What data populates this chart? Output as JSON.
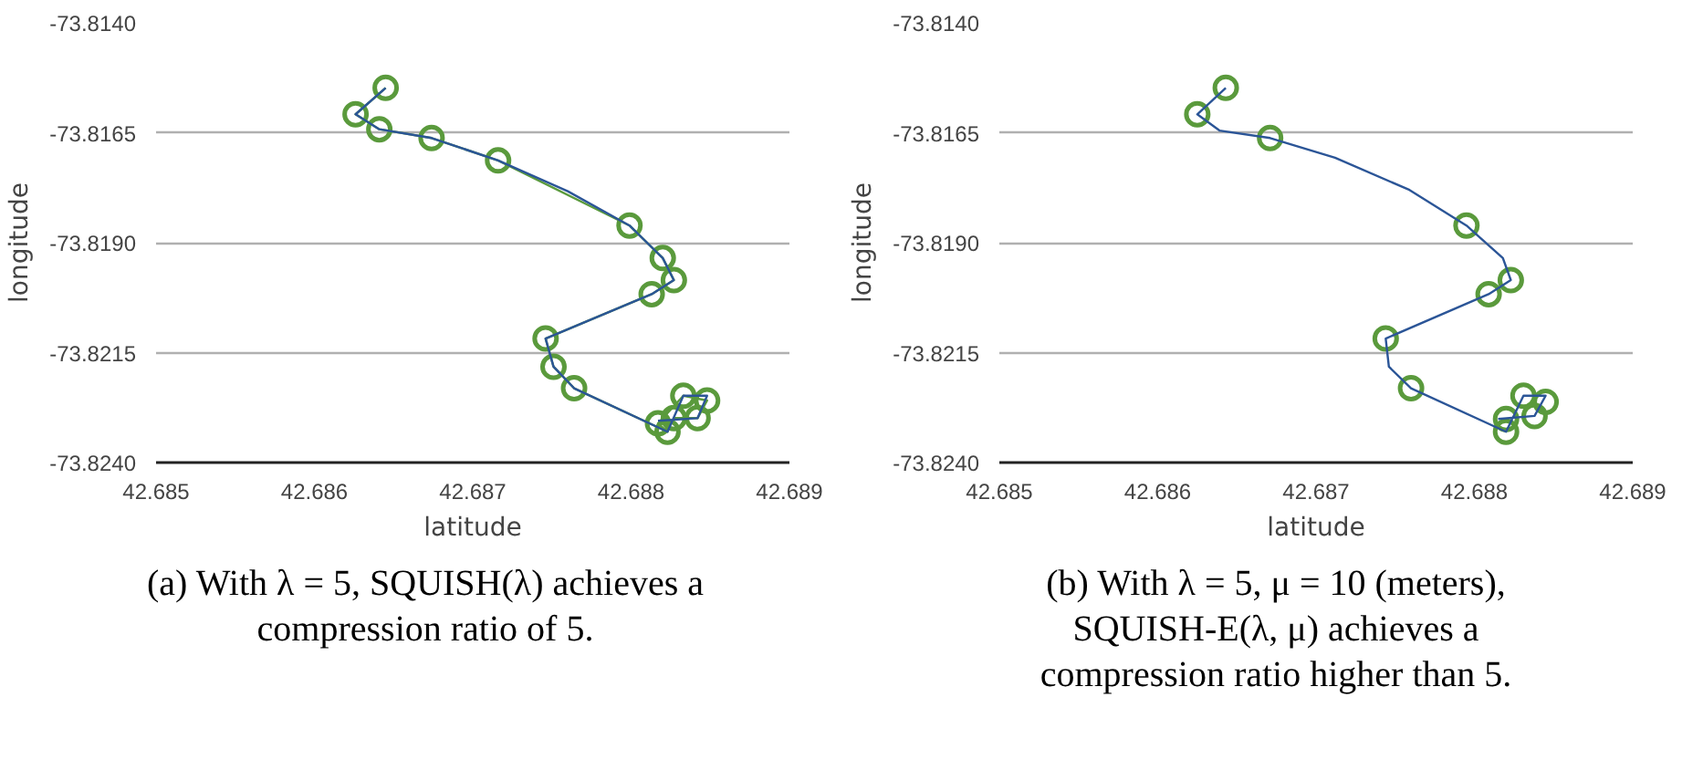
{
  "chart_data": [
    {
      "type": "line",
      "xlabel": "latitude",
      "ylabel": "longitude",
      "xlim": [
        42.685,
        42.689
      ],
      "ylim": [
        -73.824,
        -73.814
      ],
      "xticks": [
        {
          "value": 42.685,
          "label": "42.685"
        },
        {
          "value": 42.686,
          "label": "42.686"
        },
        {
          "value": 42.687,
          "label": "42.687"
        },
        {
          "value": 42.688,
          "label": "42.688"
        },
        {
          "value": 42.689,
          "label": "42.689"
        }
      ],
      "yticks": [
        {
          "value": -73.814,
          "label": "-73.8140"
        },
        {
          "value": -73.8165,
          "label": "-73.8165"
        },
        {
          "value": -73.819,
          "label": "-73.8190"
        },
        {
          "value": -73.8215,
          "label": "-73.8215"
        },
        {
          "value": -73.824,
          "label": "-73.8240"
        }
      ],
      "grid": "y",
      "series": [
        {
          "marker": "circle",
          "color": "#5a9a3c",
          "x": [
            42.68645,
            42.68626,
            42.68641,
            42.68674,
            42.68716,
            42.68799,
            42.6882,
            42.68827,
            42.68813,
            42.68746,
            42.68751,
            42.68764,
            42.68823,
            42.68817,
            42.68833,
            42.68848,
            42.68842,
            42.68827
          ],
          "values": [
            -73.81548,
            -73.81608,
            -73.81642,
            -73.81662,
            -73.81713,
            -73.81861,
            -73.81935,
            -73.81985,
            -73.82017,
            -73.82118,
            -73.82182,
            -73.82231,
            -73.8233,
            -73.82311,
            -73.82248,
            -73.82259,
            -73.82299,
            -73.82299
          ]
        },
        {
          "marker": "none",
          "color": "#2b5597",
          "x": [
            42.68645,
            42.68626,
            42.68641,
            42.68674,
            42.68716,
            42.6876,
            42.68799,
            42.6882,
            42.68827,
            42.68813,
            42.68746,
            42.68751,
            42.68764,
            42.68823,
            42.68833,
            42.68848,
            42.68842,
            42.68817
          ],
          "values": [
            -73.81548,
            -73.81608,
            -73.81642,
            -73.81662,
            -73.81713,
            -73.81783,
            -73.81861,
            -73.81935,
            -73.81985,
            -73.82017,
            -73.82118,
            -73.82182,
            -73.82231,
            -73.8233,
            -73.82248,
            -73.82248,
            -73.82299,
            -73.82305
          ]
        }
      ],
      "annotations": [
        "(a) With λ = 5, SQUISH(λ) achieves a compression ratio of 5."
      ]
    },
    {
      "type": "scatter",
      "xlabel": "latitude",
      "ylabel": "longitude",
      "xlim": [
        42.685,
        42.689
      ],
      "ylim": [
        -73.824,
        -73.814
      ],
      "xticks": [
        {
          "value": 42.685,
          "label": "42.685"
        },
        {
          "value": 42.686,
          "label": "42.686"
        },
        {
          "value": 42.687,
          "label": "42.687"
        },
        {
          "value": 42.688,
          "label": "42.688"
        },
        {
          "value": 42.689,
          "label": "42.689"
        }
      ],
      "yticks": [
        {
          "value": -73.814,
          "label": "-73.8140"
        },
        {
          "value": -73.8165,
          "label": "-73.8165"
        },
        {
          "value": -73.819,
          "label": "-73.8190"
        },
        {
          "value": -73.8215,
          "label": "-73.8215"
        },
        {
          "value": -73.824,
          "label": "-73.8240"
        }
      ],
      "grid": "y",
      "series": [
        {
          "type": "scatter",
          "marker": "circle",
          "color": "#5a9a3c",
          "x": [
            42.68643,
            42.68625,
            42.68671,
            42.68795,
            42.68823,
            42.68809,
            42.68744,
            42.6876,
            42.68831,
            42.68845,
            42.68838,
            42.6882,
            42.6882
          ],
          "values": [
            -73.81548,
            -73.81608,
            -73.81662,
            -73.81861,
            -73.81985,
            -73.82017,
            -73.82118,
            -73.82231,
            -73.82248,
            -73.82262,
            -73.82294,
            -73.82301,
            -73.8233
          ]
        },
        {
          "type": "line",
          "marker": "none",
          "color": "#2b5597",
          "x": [
            42.68643,
            42.68625,
            42.68639,
            42.68671,
            42.68712,
            42.68759,
            42.68795,
            42.68818,
            42.68823,
            42.68809,
            42.68744,
            42.68746,
            42.6876,
            42.6882,
            42.68831,
            42.68845,
            42.68838,
            42.68815
          ],
          "values": [
            -73.81548,
            -73.81608,
            -73.81645,
            -73.81662,
            -73.81707,
            -73.8178,
            -73.81861,
            -73.81935,
            -73.81985,
            -73.82017,
            -73.82118,
            -73.82182,
            -73.82231,
            -73.8233,
            -73.82248,
            -73.82248,
            -73.82294,
            -73.82301
          ]
        }
      ],
      "annotations": [
        "(b) With λ = 5, μ = 10 (meters), SQUISH-E(λ, μ) achieves a compression ratio higher than 5."
      ]
    }
  ]
}
